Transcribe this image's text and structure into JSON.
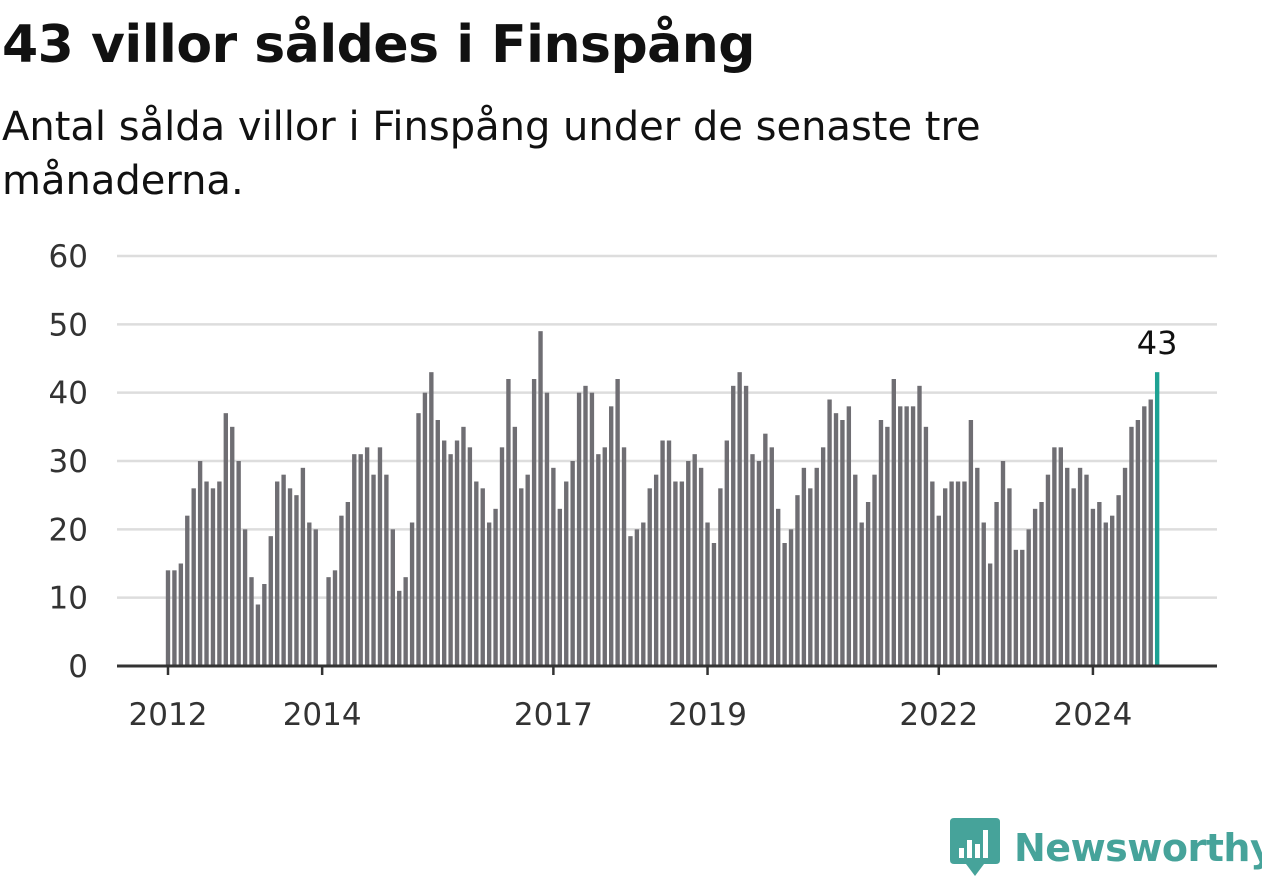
{
  "header": {
    "title": "43 villor såldes i Finspång",
    "subtitle": "Antal sålda villor i Finspång under de senaste tre månaderna."
  },
  "brand": {
    "name": "Newsworthy",
    "color": "#46a39a",
    "icon": "newsworthy-logo-icon"
  },
  "colors": {
    "bar": "#6f6e73",
    "highlight": "#1ea293",
    "grid": "#dddddd",
    "axis": "#333333"
  },
  "chart_data": {
    "type": "bar",
    "title": "",
    "xlabel": "",
    "ylabel": "",
    "ylim": [
      0,
      60
    ],
    "yticks": [
      0,
      10,
      20,
      30,
      40,
      50,
      60
    ],
    "grid": true,
    "x_start": "2012-01",
    "x_end": "2025-01",
    "xticks": [
      {
        "label": "2012",
        "date": "2012-01"
      },
      {
        "label": "2014",
        "date": "2014-01"
      },
      {
        "label": "2017",
        "date": "2017-01"
      },
      {
        "label": "2019",
        "date": "2019-01"
      },
      {
        "label": "2022",
        "date": "2022-01"
      },
      {
        "label": "2024",
        "date": "2024-01"
      }
    ],
    "months": [
      "2012-01",
      "2012-02",
      "2012-03",
      "2012-04",
      "2012-05",
      "2012-06",
      "2012-07",
      "2012-08",
      "2012-09",
      "2012-10",
      "2012-11",
      "2012-12",
      "2013-01",
      "2013-02",
      "2013-03",
      "2013-04",
      "2013-05",
      "2013-06",
      "2013-07",
      "2013-08",
      "2013-09",
      "2013-10",
      "2013-11",
      "2013-12",
      "2014-01",
      "2014-02",
      "2014-03",
      "2014-04",
      "2014-05",
      "2014-06",
      "2014-07",
      "2014-08",
      "2014-09",
      "2014-10",
      "2014-11",
      "2014-12",
      "2015-01",
      "2015-02",
      "2015-03",
      "2015-04",
      "2015-05",
      "2015-06",
      "2015-07",
      "2015-08",
      "2015-09",
      "2015-10",
      "2015-11",
      "2015-12",
      "2016-01",
      "2016-02",
      "2016-03",
      "2016-04",
      "2016-05",
      "2016-06",
      "2016-07",
      "2016-08",
      "2016-09",
      "2016-10",
      "2016-11",
      "2016-12",
      "2017-01",
      "2017-02",
      "2017-03",
      "2017-04",
      "2017-05",
      "2017-06",
      "2017-07",
      "2017-08",
      "2017-09",
      "2017-10",
      "2017-11",
      "2017-12",
      "2018-01",
      "2018-02",
      "2018-03",
      "2018-04",
      "2018-05",
      "2018-06",
      "2018-07",
      "2018-08",
      "2018-09",
      "2018-10",
      "2018-11",
      "2018-12",
      "2019-01",
      "2019-02",
      "2019-03",
      "2019-04",
      "2019-05",
      "2019-06",
      "2019-07",
      "2019-08",
      "2019-09",
      "2019-10",
      "2019-11",
      "2019-12",
      "2020-01",
      "2020-02",
      "2020-03",
      "2020-04",
      "2020-05",
      "2020-06",
      "2020-07",
      "2020-08",
      "2020-09",
      "2020-10",
      "2020-11",
      "2020-12",
      "2021-01",
      "2021-02",
      "2021-03",
      "2021-04",
      "2021-05",
      "2021-06",
      "2021-07",
      "2021-08",
      "2021-09",
      "2021-10",
      "2021-11",
      "2021-12",
      "2022-01",
      "2022-02",
      "2022-03",
      "2022-04",
      "2022-05",
      "2022-06",
      "2022-07",
      "2022-08",
      "2022-09",
      "2022-10",
      "2022-11",
      "2022-12",
      "2023-01",
      "2023-02",
      "2023-03",
      "2023-04",
      "2023-05",
      "2023-06",
      "2023-07",
      "2023-08",
      "2023-09",
      "2023-10",
      "2023-11",
      "2023-12",
      "2024-01",
      "2024-02",
      "2024-03",
      "2024-04",
      "2024-05",
      "2024-06",
      "2024-07",
      "2024-08",
      "2024-09",
      "2024-10",
      "2024-11"
    ],
    "values": [
      14,
      14,
      15,
      22,
      26,
      30,
      27,
      26,
      27,
      37,
      35,
      30,
      20,
      13,
      9,
      12,
      19,
      27,
      28,
      26,
      25,
      29,
      21,
      20,
      null,
      13,
      14,
      22,
      24,
      31,
      31,
      32,
      28,
      32,
      28,
      20,
      11,
      13,
      21,
      37,
      40,
      43,
      36,
      33,
      31,
      33,
      35,
      32,
      27,
      26,
      21,
      23,
      32,
      42,
      35,
      26,
      28,
      42,
      49,
      40,
      29,
      23,
      27,
      30,
      40,
      41,
      40,
      31,
      32,
      38,
      42,
      32,
      19,
      20,
      21,
      26,
      28,
      33,
      33,
      27,
      27,
      30,
      31,
      29,
      21,
      18,
      26,
      33,
      41,
      43,
      41,
      31,
      30,
      34,
      32,
      23,
      18,
      20,
      25,
      29,
      26,
      29,
      32,
      39,
      37,
      36,
      38,
      28,
      21,
      24,
      28,
      36,
      35,
      42,
      38,
      38,
      38,
      41,
      35,
      27,
      22,
      26,
      27,
      27,
      27,
      36,
      29,
      21,
      15,
      24,
      30,
      26,
      17,
      17,
      20,
      23,
      24,
      28,
      32,
      32,
      29,
      26,
      29,
      28,
      23,
      24,
      21,
      22,
      25,
      29,
      35,
      36,
      38,
      39,
      43
    ],
    "highlight": {
      "date": "2024-11",
      "value": 43,
      "label": "43"
    }
  }
}
